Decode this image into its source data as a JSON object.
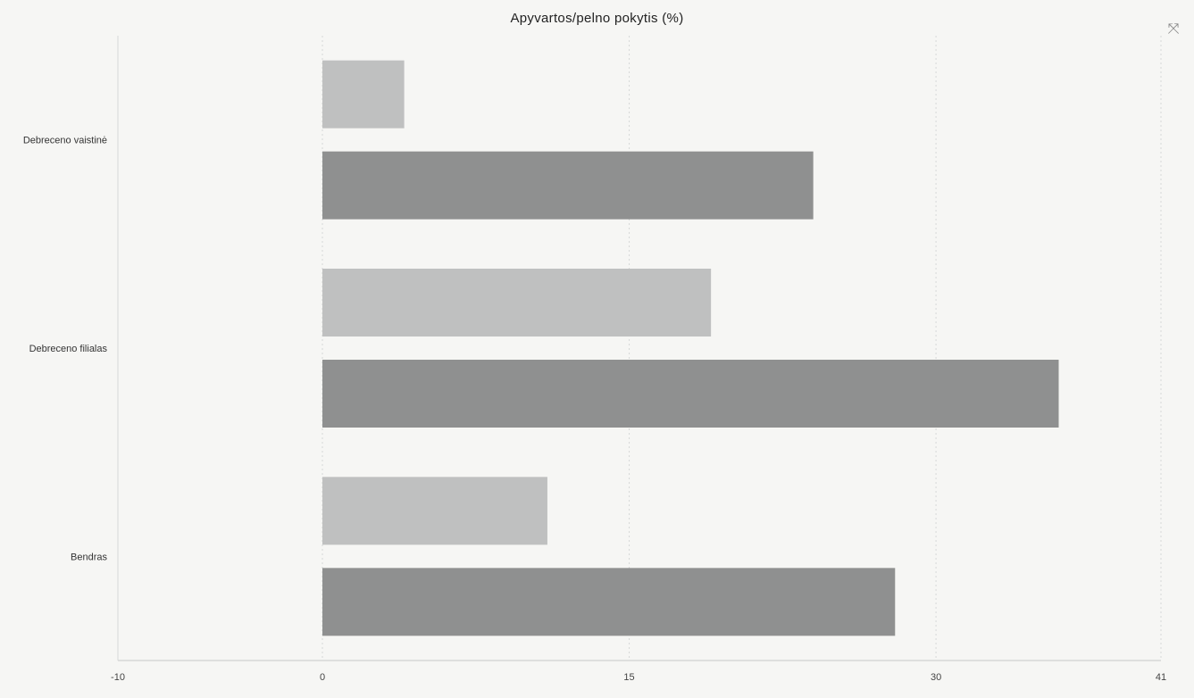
{
  "chart_data": {
    "type": "bar",
    "orientation": "horizontal",
    "title": "Apyvartos/pelno pokytis (%)",
    "categories": [
      "Debreceno vaistinė",
      "Debreceno filialas",
      "Bendras"
    ],
    "series": [
      {
        "values": [
          4,
          19,
          11
        ]
      },
      {
        "values": [
          24,
          36,
          28
        ]
      }
    ],
    "xlim": [
      -10,
      41
    ],
    "xticks": [
      "-10",
      "0",
      "15",
      "30",
      "41"
    ],
    "grid": true,
    "colors": [
      "#bfc0c0",
      "#8f9090"
    ]
  },
  "icons": {
    "expand": "expand-icon"
  }
}
